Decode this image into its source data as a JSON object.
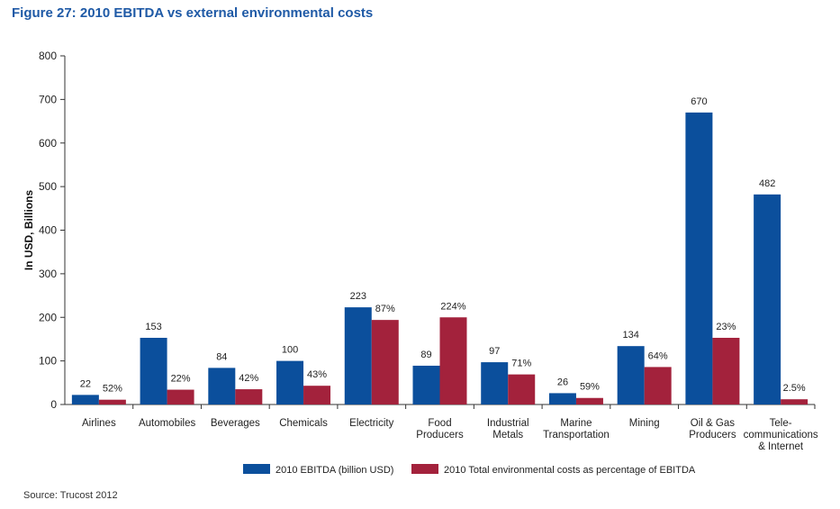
{
  "figure": {
    "title": "Figure 27: 2010 EBITDA vs external environmental costs",
    "source": "Source: Trucost 2012"
  },
  "chart_data": {
    "type": "bar",
    "ylabel": "In USD, Billions",
    "xlabel": "",
    "ylim": [
      0,
      800
    ],
    "yticks": [
      0,
      100,
      200,
      300,
      400,
      500,
      600,
      700,
      800
    ],
    "grid": false,
    "legend_position": "bottom-center",
    "categories": [
      [
        "Airlines"
      ],
      [
        "Automobiles"
      ],
      [
        "Beverages"
      ],
      [
        "Chemicals"
      ],
      [
        "Electricity"
      ],
      [
        "Food",
        "Producers"
      ],
      [
        "Industrial",
        "Metals"
      ],
      [
        "Marine",
        "Transportation"
      ],
      [
        "Mining"
      ],
      [
        "Oil & Gas",
        "Producers"
      ],
      [
        "Tele-",
        "communications",
        "& Internet"
      ]
    ],
    "series": [
      {
        "name": "2010 EBITDA (billion USD)",
        "color": "#0b4f9c",
        "values": [
          22,
          153,
          84,
          100,
          223,
          89,
          97,
          26,
          134,
          670,
          482
        ],
        "labels": [
          "22",
          "153",
          "84",
          "100",
          "223",
          "89",
          "97",
          "26",
          "134",
          "670",
          "482"
        ]
      },
      {
        "name": "2010 Total environmental costs as percentage of EBITDA",
        "color": "#a3223c",
        "values": [
          11,
          34,
          35,
          43,
          194,
          200,
          69,
          15,
          86,
          153,
          12
        ],
        "labels": [
          "52%",
          "22%",
          "42%",
          "43%",
          "87%",
          "224%",
          "71%",
          "59%",
          "64%",
          "23%",
          "2.5%"
        ]
      }
    ]
  }
}
